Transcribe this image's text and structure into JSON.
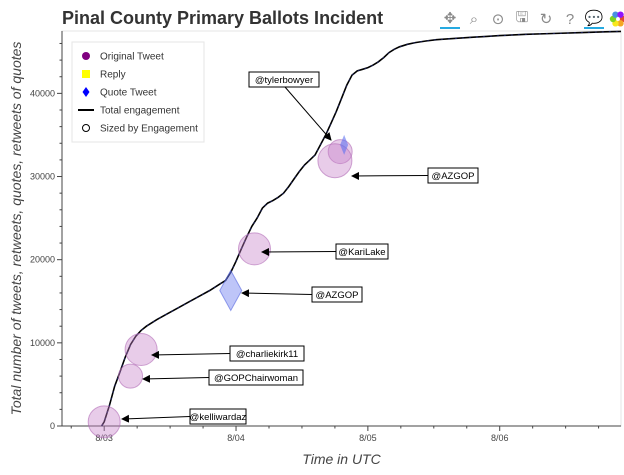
{
  "toolbar": {
    "tools": [
      {
        "name": "pan-tool",
        "glyph": "✥",
        "active": true
      },
      {
        "name": "box-zoom-tool",
        "glyph": "⌕",
        "active": false
      },
      {
        "name": "wheel-zoom-tool",
        "glyph": "⊙",
        "active": false
      },
      {
        "name": "save-tool",
        "glyph": "🖫",
        "active": false
      },
      {
        "name": "reset-tool",
        "glyph": "↻",
        "active": false
      },
      {
        "name": "help-tool",
        "glyph": "?",
        "active": false
      },
      {
        "name": "hover-tool",
        "glyph": "💬",
        "active": true
      }
    ],
    "logo_colors": [
      "#e24a33",
      "#f5a623",
      "#f8e71c",
      "#7ed321",
      "#4a90e2",
      "#9013fe"
    ]
  },
  "chart_data": {
    "type": "line",
    "title": "Pinal County Primary Ballots Incident",
    "xlabel": "Time in UTC",
    "ylabel": "Total number of tweets, retweets, quotes, retweets of quotes",
    "x_unit": "days since 8/03 00:00 UTC",
    "xlim": [
      -0.32,
      3.92
    ],
    "ylim": [
      0,
      47500
    ],
    "x_ticks": [
      {
        "value": 0,
        "label": "8/03"
      },
      {
        "value": 1,
        "label": "8/04"
      },
      {
        "value": 2,
        "label": "8/05"
      },
      {
        "value": 3,
        "label": "8/06"
      }
    ],
    "y_ticks": [
      {
        "value": 0,
        "label": "0"
      },
      {
        "value": 10000,
        "label": "10000"
      },
      {
        "value": 20000,
        "label": "20000"
      },
      {
        "value": 30000,
        "label": "30000"
      },
      {
        "value": 40000,
        "label": "40000"
      }
    ],
    "legend": {
      "position": "top-left",
      "entries": [
        {
          "label": "Original Tweet",
          "symbol": "circle",
          "color": "#800080"
        },
        {
          "label": "Reply",
          "symbol": "square",
          "color": "#ffff00"
        },
        {
          "label": "Quote Tweet",
          "symbol": "diamond",
          "color": "#0000ff"
        },
        {
          "label": "Total engagement",
          "symbol": "line",
          "color": "#000000"
        },
        {
          "label": "Sized by Engagement",
          "symbol": "open-circle",
          "color": "#000000"
        }
      ]
    },
    "series": [
      {
        "name": "Total engagement",
        "color": "#000000",
        "x": [
          -0.02,
          0.0,
          0.04,
          0.08,
          0.12,
          0.16,
          0.2,
          0.24,
          0.28,
          0.32,
          0.4,
          0.48,
          0.56,
          0.64,
          0.72,
          0.8,
          0.88,
          0.92,
          0.96,
          1.0,
          1.04,
          1.08,
          1.12,
          1.16,
          1.2,
          1.24,
          1.28,
          1.32,
          1.36,
          1.4,
          1.44,
          1.48,
          1.52,
          1.56,
          1.6,
          1.64,
          1.68,
          1.72,
          1.76,
          1.8,
          1.84,
          1.88,
          1.92,
          1.96,
          2.0,
          2.04,
          2.08,
          2.12,
          2.16,
          2.2,
          2.24,
          2.3,
          2.36,
          2.44,
          2.52,
          2.6,
          2.7,
          2.8,
          2.9,
          3.0,
          3.2,
          3.4,
          3.6,
          3.8,
          3.92
        ],
        "y": [
          0,
          500,
          2500,
          4800,
          6500,
          8300,
          9800,
          10800,
          11500,
          12000,
          12800,
          13500,
          14200,
          14900,
          15600,
          16300,
          17100,
          17500,
          18500,
          19800,
          21300,
          22700,
          24000,
          25000,
          26200,
          26800,
          27100,
          27500,
          28000,
          28800,
          29700,
          30600,
          31400,
          32000,
          32600,
          33800,
          35000,
          36400,
          37800,
          39400,
          41000,
          42200,
          42700,
          42900,
          43100,
          43400,
          43800,
          44300,
          44900,
          45300,
          45600,
          45900,
          46100,
          46300,
          46450,
          46550,
          46650,
          46750,
          46850,
          46950,
          47100,
          47200,
          47300,
          47400,
          47450
        ]
      }
    ],
    "tweets": [
      {
        "handle": "@kelliwardaz",
        "type": "original",
        "x": 0.0,
        "y": 500
      },
      {
        "handle": "@GOPChairwoman",
        "type": "original",
        "x": 0.2,
        "y": 6000
      },
      {
        "handle": "@charliekirk11",
        "type": "original",
        "x": 0.28,
        "y": 9200
      },
      {
        "handle": "@AZGOP",
        "type": "quote",
        "x": 0.96,
        "y": 16300
      },
      {
        "handle": "@KariLake",
        "type": "original",
        "x": 1.14,
        "y": 21300
      },
      {
        "handle": "@tylerbowyer",
        "type": "original",
        "x": 1.79,
        "y": 33000
      },
      {
        "handle": "@AZGOP",
        "type": "original",
        "x": 1.75,
        "y": 31900
      }
    ]
  }
}
